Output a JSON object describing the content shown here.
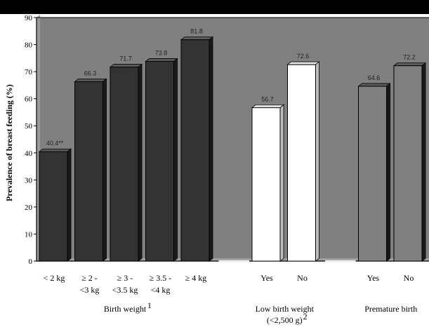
{
  "chart_data": {
    "type": "bar",
    "ylabel": "Prevalence of breast feeding (%)",
    "ylim": [
      0,
      90
    ],
    "yticks": [
      0,
      10,
      20,
      30,
      40,
      50,
      60,
      70,
      80,
      90
    ],
    "bars": [
      {
        "category_lines": [
          "< 2 kg"
        ],
        "value": 40.4,
        "value_label": "40.4**",
        "color": "#333333"
      },
      {
        "category_lines": [
          "≥ 2 -",
          "<3 kg"
        ],
        "value": 66.3,
        "value_label": "66.3",
        "color": "#333333"
      },
      {
        "category_lines": [
          "≥ 3 -",
          "<3.5 kg"
        ],
        "value": 71.7,
        "value_label": "71.7",
        "color": "#333333"
      },
      {
        "category_lines": [
          "≥ 3.5 -",
          "<4 kg"
        ],
        "value": 73.8,
        "value_label": "73.8",
        "color": "#333333"
      },
      {
        "category_lines": [
          "≥ 4 kg"
        ],
        "value": 81.8,
        "value_label": "81.8",
        "color": "#333333"
      },
      {
        "category_lines": [
          ""
        ],
        "value": 0,
        "value_label": "",
        "color": "#808080"
      },
      {
        "category_lines": [
          "Yes"
        ],
        "value": 56.7,
        "value_label": "56.7",
        "color": "#ffffff"
      },
      {
        "category_lines": [
          "No"
        ],
        "value": 72.6,
        "value_label": "72.6",
        "color": "#ffffff"
      },
      {
        "category_lines": [
          ""
        ],
        "value": 0,
        "value_label": "",
        "color": "#808080"
      },
      {
        "category_lines": [
          "Yes"
        ],
        "value": 64.6,
        "value_label": "64.6",
        "color": "#808080"
      },
      {
        "category_lines": [
          "No"
        ],
        "value": 72.2,
        "value_label": "72.2",
        "color": "#808080"
      }
    ],
    "groups": [
      {
        "label_lines": [
          "Birth weight"
        ],
        "superscript": "1",
        "bar_range": [
          0,
          4
        ]
      },
      {
        "label_lines": [
          "Low birth weight",
          "(<2,500 g)"
        ],
        "superscript": "2",
        "bar_range": [
          6,
          7
        ]
      },
      {
        "label_lines": [
          "Premature birth"
        ],
        "superscript": "",
        "bar_range": [
          9,
          10
        ]
      }
    ],
    "colors": {
      "background": "#808080",
      "plot_border": "#000000",
      "header_band": "#000000"
    },
    "grid": false,
    "legend": "none"
  }
}
